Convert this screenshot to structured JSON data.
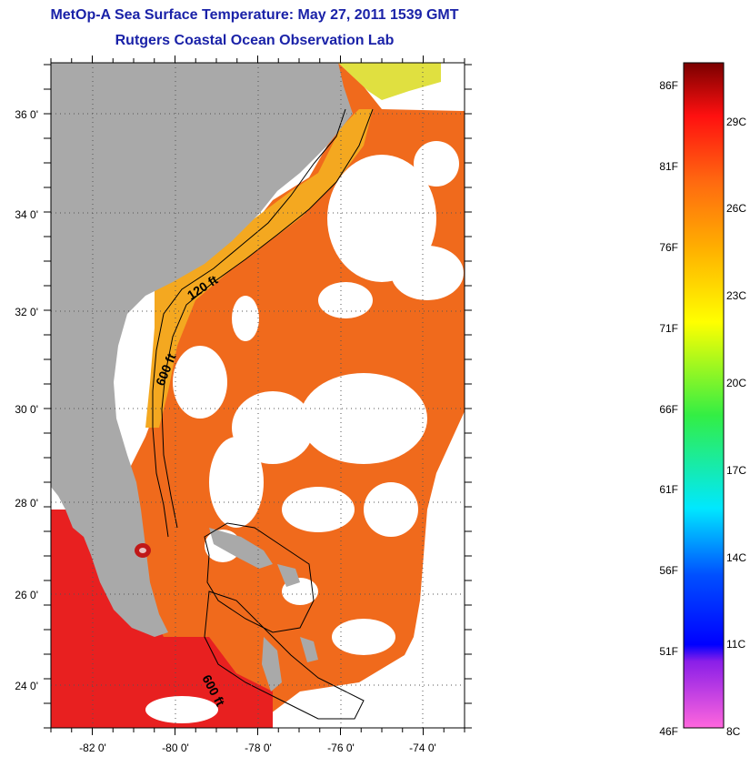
{
  "title": "MetOp-A Sea Surface Temperature:  May 27, 2011 1539 GMT",
  "subtitle": "Rutgers Coastal Ocean Observation Lab",
  "map": {
    "lon_range": [
      -83,
      -73
    ],
    "lat_range": [
      23,
      37.2
    ],
    "x_tick_labels": [
      "-82 0'",
      "-80 0'",
      "-78 0'",
      "-76 0'",
      "-74 0'"
    ],
    "y_tick_labels": [
      "36 0'",
      "34 0'",
      "32 0'",
      "30 0'",
      "28 0'",
      "26 0'",
      "24 0'"
    ],
    "contour_labels": [
      "120 ft",
      "600 ft",
      "600 ft"
    ],
    "colors": {
      "land": "#a9a9a9",
      "cloud": "#ffffff",
      "sst_warm": "#f06a1c",
      "sst_hot": "#e82020",
      "sst_shelf": "#f4a820",
      "sst_cool": "#e0e040"
    }
  },
  "colorbar": {
    "fahrenheit_labels": [
      "86F",
      "81F",
      "76F",
      "71F",
      "66F",
      "61F",
      "56F",
      "51F",
      "46F"
    ],
    "celsius_labels": [
      "29C",
      "26C",
      "23C",
      "20C",
      "17C",
      "14C",
      "11C",
      "8C"
    ],
    "fahrenheit_range": [
      46,
      88
    ],
    "celsius_range": [
      8,
      31
    ]
  }
}
